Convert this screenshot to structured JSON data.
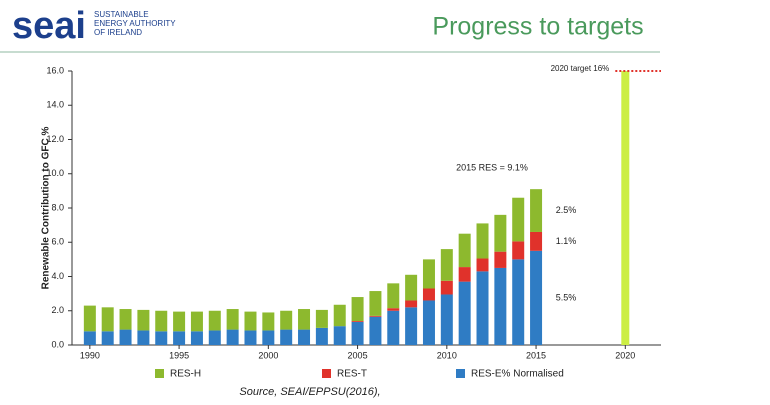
{
  "header": {
    "logo": "seai",
    "logo_lines": [
      "SUSTAINABLE",
      "ENERGY AUTHORITY",
      "OF IRELAND"
    ]
  },
  "chart_data": {
    "type": "stacked-bar",
    "title": "Progress to targets",
    "y_label": "Renewable Contribution to GFC %",
    "x": [
      1990,
      1991,
      1992,
      1993,
      1994,
      1995,
      1996,
      1997,
      1998,
      1999,
      2000,
      2001,
      2002,
      2003,
      2004,
      2005,
      2006,
      2007,
      2008,
      2009,
      2010,
      2011,
      2012,
      2013,
      2014,
      2015
    ],
    "series": [
      {
        "name": "RES-H",
        "color": "#8db92e",
        "values": [
          1.5,
          1.4,
          1.2,
          1.2,
          1.2,
          1.15,
          1.15,
          1.15,
          1.2,
          1.1,
          1.05,
          1.1,
          1.2,
          1.05,
          1.25,
          1.4,
          1.45,
          1.45,
          1.5,
          1.7,
          1.85,
          1.95,
          2.05,
          2.15,
          2.55,
          2.5
        ],
        "value_labels": [
          null,
          null,
          null,
          null,
          null,
          null,
          null,
          null,
          null,
          null,
          null,
          null,
          null,
          null,
          null,
          null,
          null,
          null,
          null,
          null,
          null,
          null,
          null,
          null,
          null,
          "2.5%"
        ]
      },
      {
        "name": "RES-T",
        "color": "#e0322b",
        "values": [
          0,
          0,
          0,
          0,
          0,
          0,
          0,
          0,
          0,
          0,
          0,
          0,
          0,
          0,
          0,
          0.05,
          0.05,
          0.15,
          0.4,
          0.7,
          0.8,
          0.85,
          0.75,
          0.95,
          1.05,
          1.1
        ],
        "value_labels": [
          null,
          null,
          null,
          null,
          null,
          null,
          null,
          null,
          null,
          null,
          null,
          null,
          null,
          null,
          null,
          null,
          null,
          null,
          null,
          null,
          null,
          null,
          null,
          null,
          null,
          "1.1%"
        ]
      },
      {
        "name": "RES-E% Normalised",
        "color": "#2f7cc4",
        "values": [
          0.8,
          0.8,
          0.9,
          0.85,
          0.8,
          0.8,
          0.8,
          0.85,
          0.9,
          0.85,
          0.85,
          0.9,
          0.9,
          1.0,
          1.1,
          1.35,
          1.65,
          2.0,
          2.2,
          2.6,
          2.95,
          3.7,
          4.3,
          4.5,
          5.0,
          5.5
        ],
        "value_labels": [
          null,
          null,
          null,
          null,
          null,
          null,
          null,
          null,
          null,
          null,
          null,
          null,
          null,
          null,
          null,
          null,
          null,
          null,
          null,
          null,
          null,
          null,
          null,
          null,
          null,
          "5.5%"
        ]
      }
    ],
    "target": {
      "x": 2020,
      "value": 16,
      "color": "#ccee44",
      "line_color": "#e0322b",
      "label": "2020 target 16%"
    },
    "annotations": [
      "2015 RES = 9.1%"
    ],
    "xlim": [
      1989,
      2022
    ],
    "xticks": [
      1990,
      1995,
      2000,
      2005,
      2010,
      2015,
      2020
    ],
    "ylim": [
      0,
      16
    ],
    "yticks": [
      {
        "value": 0,
        "label": "0.0"
      },
      {
        "value": 2,
        "label": "2.0"
      },
      {
        "value": 4,
        "label": "4.0"
      },
      {
        "value": 6,
        "label": "6.0"
      },
      {
        "value": 8,
        "label": "8.0"
      },
      {
        "value": 10,
        "label": "10.0"
      },
      {
        "value": 12,
        "label": "12.0"
      },
      {
        "value": 14,
        "label": "14.0"
      },
      {
        "value": 16,
        "label": "16.0"
      }
    ],
    "source": "Source, SEAI/EPPSU(2016),"
  }
}
